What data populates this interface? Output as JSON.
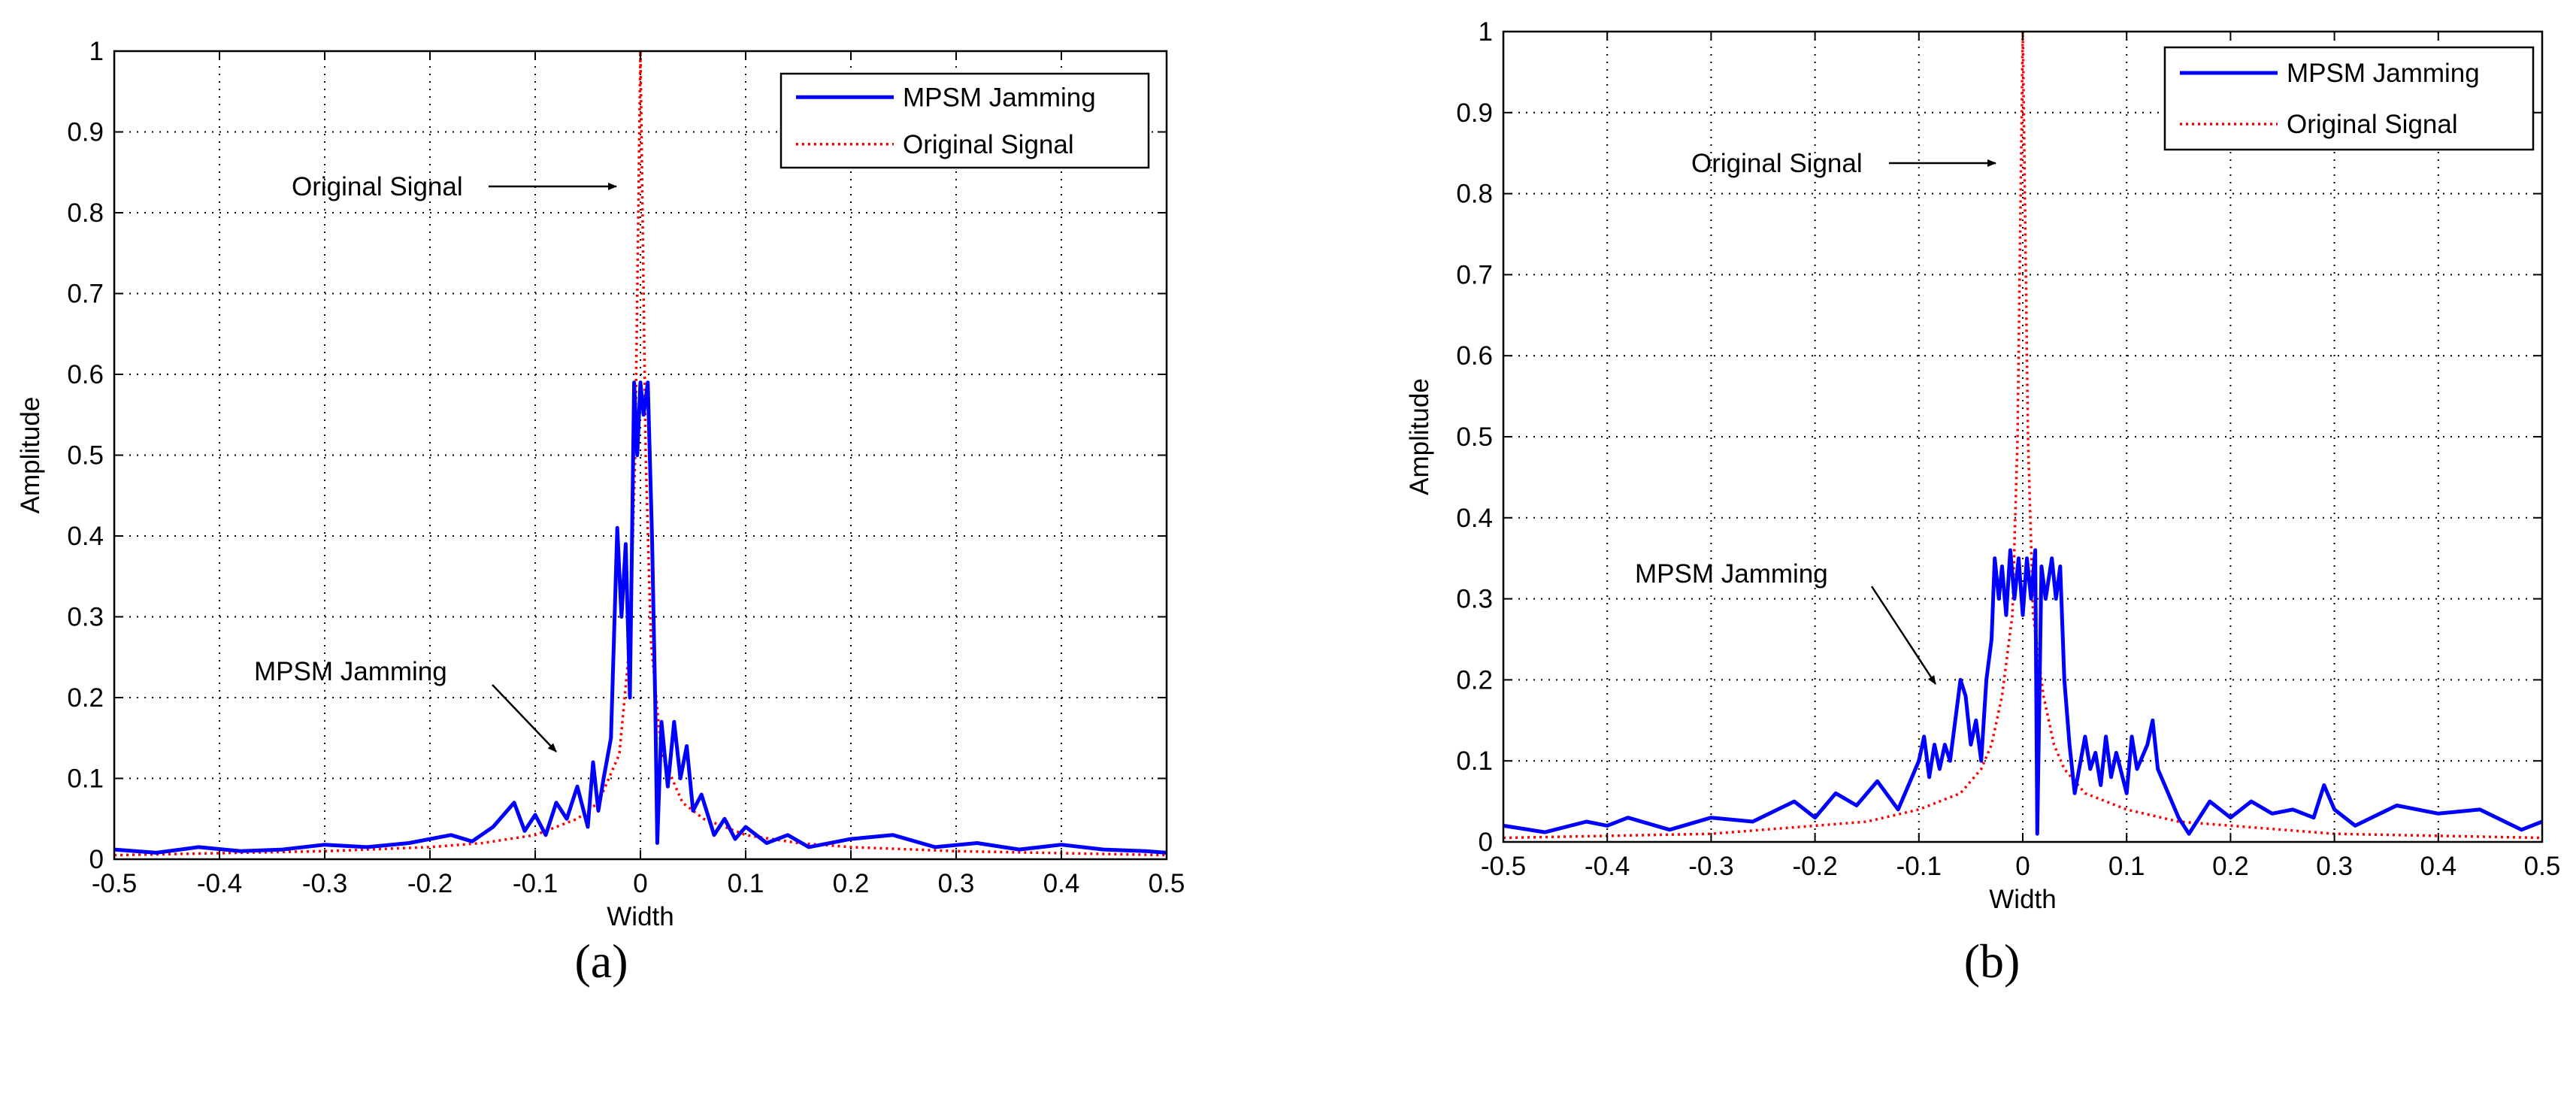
{
  "figure": {
    "panel_labels": [
      "(a)",
      "(b)"
    ]
  },
  "chart_data": [
    {
      "type": "line",
      "xlabel": "Width",
      "ylabel": "Amplitude",
      "xlim": [
        -0.5,
        0.5
      ],
      "ylim": [
        0,
        1
      ],
      "xticks": [
        -0.5,
        -0.4,
        -0.3,
        -0.2,
        -0.1,
        0,
        0.1,
        0.2,
        0.3,
        0.4,
        0.5
      ],
      "xtick_labels": [
        "-0.5",
        "-0.4",
        "-0.3",
        "-0.2",
        "-0.1",
        "0",
        "0.1",
        "0.2",
        "0.3",
        "0.4",
        "0.5"
      ],
      "yticks": [
        0,
        0.1,
        0.2,
        0.3,
        0.4,
        0.5,
        0.6,
        0.7,
        0.8,
        0.9,
        1
      ],
      "ytick_labels": [
        "0",
        "0.1",
        "0.2",
        "0.3",
        "0.4",
        "0.5",
        "0.6",
        "0.7",
        "0.8",
        "0.9",
        "1"
      ],
      "grid": true,
      "legend_position": "top-right",
      "series": [
        {
          "name": "MPSM Jamming",
          "color": "#0000ff",
          "style": "solid",
          "points": [
            [
              -0.5,
              0.012
            ],
            [
              -0.46,
              0.008
            ],
            [
              -0.42,
              0.015
            ],
            [
              -0.38,
              0.01
            ],
            [
              -0.34,
              0.012
            ],
            [
              -0.3,
              0.018
            ],
            [
              -0.26,
              0.015
            ],
            [
              -0.22,
              0.02
            ],
            [
              -0.18,
              0.03
            ],
            [
              -0.16,
              0.022
            ],
            [
              -0.14,
              0.04
            ],
            [
              -0.12,
              0.07
            ],
            [
              -0.11,
              0.035
            ],
            [
              -0.1,
              0.055
            ],
            [
              -0.09,
              0.03
            ],
            [
              -0.08,
              0.07
            ],
            [
              -0.07,
              0.05
            ],
            [
              -0.06,
              0.09
            ],
            [
              -0.05,
              0.04
            ],
            [
              -0.045,
              0.12
            ],
            [
              -0.04,
              0.06
            ],
            [
              -0.035,
              0.1
            ],
            [
              -0.028,
              0.15
            ],
            [
              -0.022,
              0.41
            ],
            [
              -0.018,
              0.3
            ],
            [
              -0.014,
              0.39
            ],
            [
              -0.01,
              0.2
            ],
            [
              -0.006,
              0.59
            ],
            [
              -0.003,
              0.5
            ],
            [
              0,
              0.59
            ],
            [
              0.003,
              0.55
            ],
            [
              0.007,
              0.59
            ],
            [
              0.011,
              0.4
            ],
            [
              0.014,
              0.2
            ],
            [
              0.016,
              0.02
            ],
            [
              0.02,
              0.17
            ],
            [
              0.026,
              0.09
            ],
            [
              0.032,
              0.17
            ],
            [
              0.038,
              0.1
            ],
            [
              0.044,
              0.14
            ],
            [
              0.05,
              0.06
            ],
            [
              0.058,
              0.08
            ],
            [
              0.07,
              0.03
            ],
            [
              0.08,
              0.05
            ],
            [
              0.09,
              0.025
            ],
            [
              0.1,
              0.04
            ],
            [
              0.12,
              0.02
            ],
            [
              0.14,
              0.03
            ],
            [
              0.16,
              0.015
            ],
            [
              0.2,
              0.025
            ],
            [
              0.24,
              0.03
            ],
            [
              0.28,
              0.015
            ],
            [
              0.32,
              0.02
            ],
            [
              0.36,
              0.012
            ],
            [
              0.4,
              0.018
            ],
            [
              0.44,
              0.012
            ],
            [
              0.48,
              0.01
            ],
            [
              0.5,
              0.008
            ]
          ]
        },
        {
          "name": "Original Signal",
          "color": "#ff0000",
          "style": "dotted",
          "points": [
            [
              -0.5,
              0.005
            ],
            [
              -0.3,
              0.01
            ],
            [
              -0.2,
              0.015
            ],
            [
              -0.15,
              0.02
            ],
            [
              -0.1,
              0.03
            ],
            [
              -0.08,
              0.04
            ],
            [
              -0.06,
              0.05
            ],
            [
              -0.04,
              0.07
            ],
            [
              -0.03,
              0.1
            ],
            [
              -0.02,
              0.13
            ],
            [
              -0.01,
              0.27
            ],
            [
              -0.005,
              0.5
            ],
            [
              0,
              1.0
            ],
            [
              0.005,
              0.5
            ],
            [
              0.01,
              0.27
            ],
            [
              0.02,
              0.13
            ],
            [
              0.03,
              0.1
            ],
            [
              0.04,
              0.07
            ],
            [
              0.06,
              0.05
            ],
            [
              0.08,
              0.04
            ],
            [
              0.1,
              0.03
            ],
            [
              0.15,
              0.02
            ],
            [
              0.2,
              0.015
            ],
            [
              0.3,
              0.01
            ],
            [
              0.5,
              0.005
            ]
          ]
        }
      ],
      "annotations": [
        {
          "text": "Original Signal",
          "arrow_to": [
            -0.015,
            0.83
          ]
        },
        {
          "text": "MPSM Jamming",
          "arrow_to": [
            -0.075,
            0.14
          ]
        }
      ]
    },
    {
      "type": "line",
      "xlabel": "Width",
      "ylabel": "Amplitude",
      "xlim": [
        -0.5,
        0.5
      ],
      "ylim": [
        0,
        1
      ],
      "xticks": [
        -0.5,
        -0.4,
        -0.3,
        -0.2,
        -0.1,
        0,
        0.1,
        0.2,
        0.3,
        0.4,
        0.5
      ],
      "xtick_labels": [
        "-0.5",
        "-0.4",
        "-0.3",
        "-0.2",
        "-0.1",
        "0",
        "0.1",
        "0.2",
        "0.3",
        "0.4",
        "0.5"
      ],
      "yticks": [
        0,
        0.1,
        0.2,
        0.3,
        0.4,
        0.5,
        0.6,
        0.7,
        0.8,
        0.9,
        1
      ],
      "ytick_labels": [
        "0",
        "0.1",
        "0.2",
        "0.3",
        "0.4",
        "0.5",
        "0.6",
        "0.7",
        "0.8",
        "0.9",
        "1"
      ],
      "grid": true,
      "legend_position": "top-right",
      "series": [
        {
          "name": "MPSM Jamming",
          "color": "#0000ff",
          "style": "solid",
          "points": [
            [
              -0.5,
              0.02
            ],
            [
              -0.46,
              0.012
            ],
            [
              -0.42,
              0.025
            ],
            [
              -0.4,
              0.02
            ],
            [
              -0.38,
              0.03
            ],
            [
              -0.34,
              0.015
            ],
            [
              -0.3,
              0.03
            ],
            [
              -0.26,
              0.025
            ],
            [
              -0.22,
              0.05
            ],
            [
              -0.2,
              0.03
            ],
            [
              -0.18,
              0.06
            ],
            [
              -0.16,
              0.045
            ],
            [
              -0.14,
              0.075
            ],
            [
              -0.12,
              0.04
            ],
            [
              -0.1,
              0.1
            ],
            [
              -0.095,
              0.13
            ],
            [
              -0.09,
              0.08
            ],
            [
              -0.085,
              0.12
            ],
            [
              -0.08,
              0.09
            ],
            [
              -0.075,
              0.12
            ],
            [
              -0.07,
              0.1
            ],
            [
              -0.06,
              0.2
            ],
            [
              -0.055,
              0.18
            ],
            [
              -0.05,
              0.12
            ],
            [
              -0.045,
              0.15
            ],
            [
              -0.04,
              0.1
            ],
            [
              -0.035,
              0.2
            ],
            [
              -0.03,
              0.25
            ],
            [
              -0.027,
              0.35
            ],
            [
              -0.023,
              0.3
            ],
            [
              -0.02,
              0.34
            ],
            [
              -0.016,
              0.28
            ],
            [
              -0.012,
              0.36
            ],
            [
              -0.008,
              0.3
            ],
            [
              -0.004,
              0.35
            ],
            [
              0,
              0.28
            ],
            [
              0.004,
              0.35
            ],
            [
              0.008,
              0.3
            ],
            [
              0.012,
              0.36
            ],
            [
              0.014,
              0.01
            ],
            [
              0.018,
              0.34
            ],
            [
              0.022,
              0.3
            ],
            [
              0.028,
              0.35
            ],
            [
              0.032,
              0.3
            ],
            [
              0.036,
              0.34
            ],
            [
              0.04,
              0.2
            ],
            [
              0.045,
              0.12
            ],
            [
              0.05,
              0.06
            ],
            [
              0.06,
              0.13
            ],
            [
              0.065,
              0.09
            ],
            [
              0.07,
              0.11
            ],
            [
              0.075,
              0.07
            ],
            [
              0.08,
              0.13
            ],
            [
              0.085,
              0.08
            ],
            [
              0.09,
              0.11
            ],
            [
              0.1,
              0.06
            ],
            [
              0.105,
              0.13
            ],
            [
              0.11,
              0.09
            ],
            [
              0.12,
              0.12
            ],
            [
              0.125,
              0.15
            ],
            [
              0.13,
              0.09
            ],
            [
              0.14,
              0.06
            ],
            [
              0.15,
              0.03
            ],
            [
              0.16,
              0.01
            ],
            [
              0.18,
              0.05
            ],
            [
              0.2,
              0.03
            ],
            [
              0.22,
              0.05
            ],
            [
              0.24,
              0.035
            ],
            [
              0.26,
              0.04
            ],
            [
              0.28,
              0.03
            ],
            [
              0.29,
              0.07
            ],
            [
              0.3,
              0.04
            ],
            [
              0.32,
              0.02
            ],
            [
              0.36,
              0.045
            ],
            [
              0.4,
              0.035
            ],
            [
              0.44,
              0.04
            ],
            [
              0.48,
              0.015
            ],
            [
              0.5,
              0.025
            ]
          ]
        },
        {
          "name": "Original Signal",
          "color": "#ff0000",
          "style": "dotted",
          "points": [
            [
              -0.5,
              0.005
            ],
            [
              -0.3,
              0.01
            ],
            [
              -0.2,
              0.02
            ],
            [
              -0.15,
              0.025
            ],
            [
              -0.1,
              0.04
            ],
            [
              -0.08,
              0.05
            ],
            [
              -0.06,
              0.06
            ],
            [
              -0.04,
              0.09
            ],
            [
              -0.03,
              0.12
            ],
            [
              -0.02,
              0.18
            ],
            [
              -0.01,
              0.28
            ],
            [
              -0.005,
              0.5
            ],
            [
              0,
              1.0
            ],
            [
              0.005,
              0.5
            ],
            [
              0.01,
              0.28
            ],
            [
              0.02,
              0.18
            ],
            [
              0.03,
              0.12
            ],
            [
              0.04,
              0.09
            ],
            [
              0.06,
              0.06
            ],
            [
              0.08,
              0.05
            ],
            [
              0.1,
              0.04
            ],
            [
              0.15,
              0.025
            ],
            [
              0.2,
              0.02
            ],
            [
              0.3,
              0.01
            ],
            [
              0.5,
              0.005
            ]
          ]
        }
      ],
      "annotations": [
        {
          "text": "Original Signal",
          "arrow_to": [
            -0.01,
            0.85
          ]
        },
        {
          "text": "MPSM Jamming",
          "arrow_to": [
            -0.08,
            0.2
          ]
        }
      ]
    }
  ]
}
